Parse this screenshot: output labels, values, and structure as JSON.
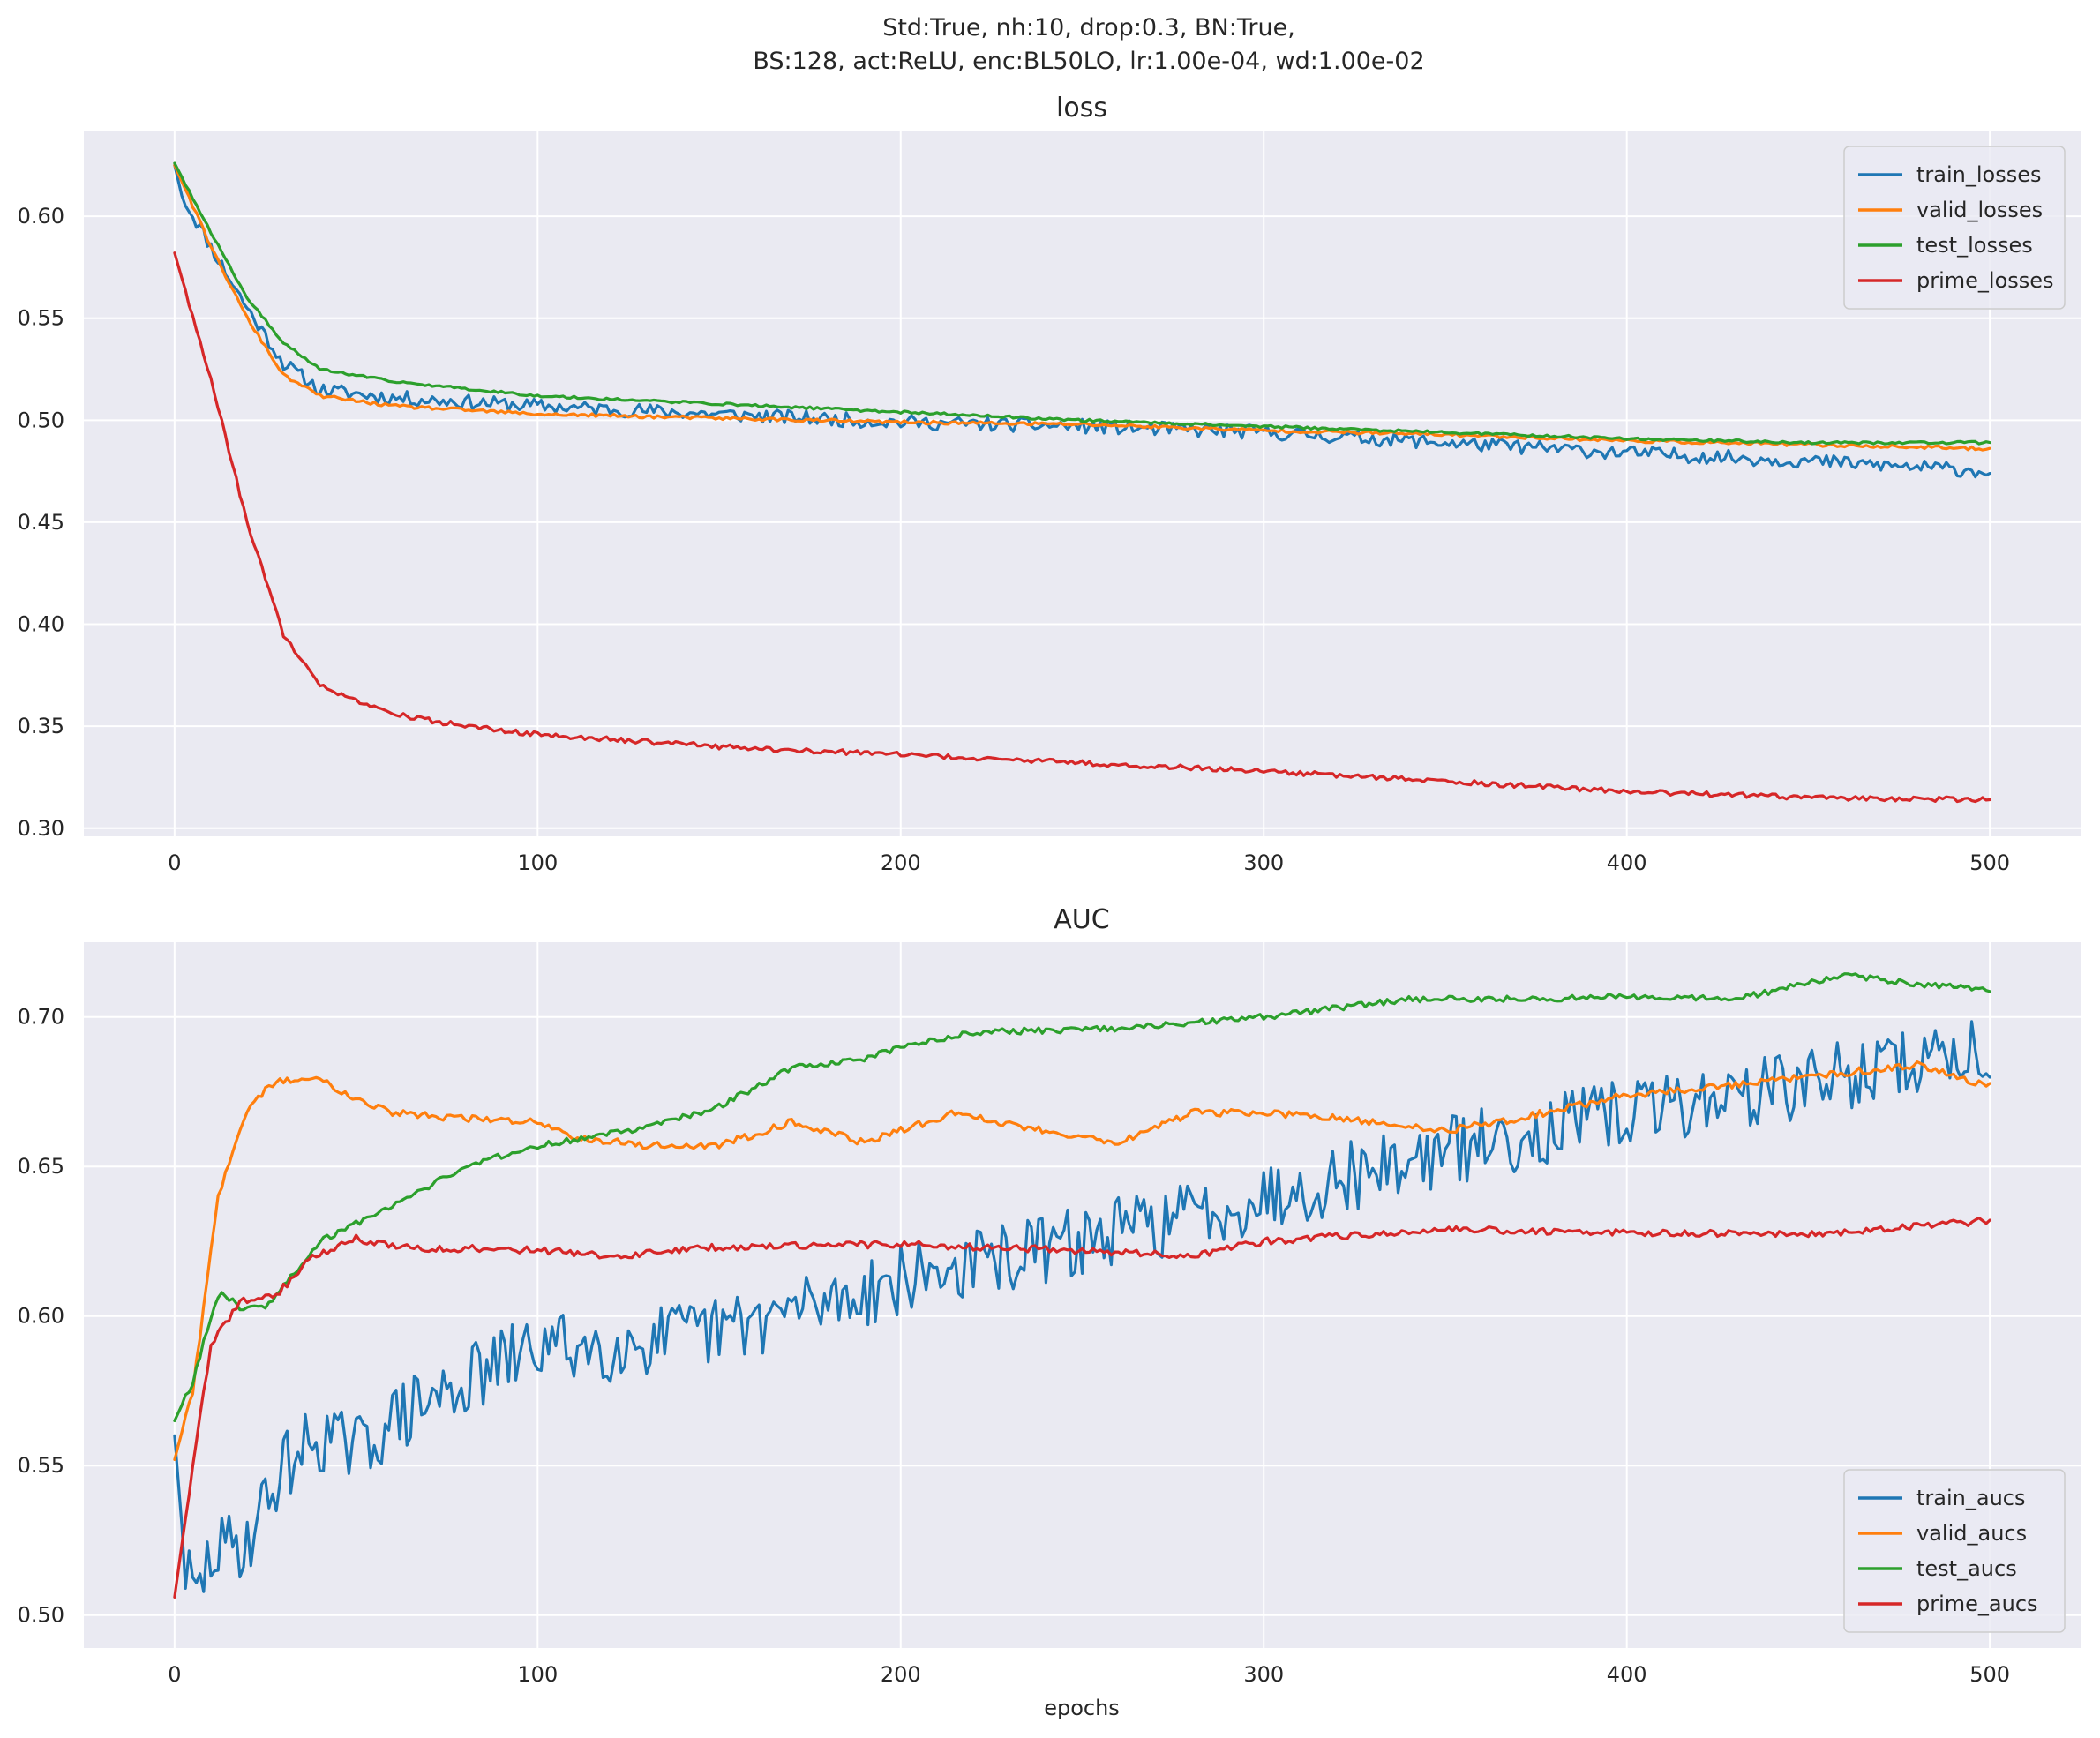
{
  "figure": {
    "suptitle_line1": "Std:True, nh:10, drop:0.3, BN:True,",
    "suptitle_line2": "BS:128, act:ReLU, enc:BL50LO, lr:1.00e-04, wd:1.00e-02"
  },
  "colors": {
    "blue": "#1f77b4",
    "orange": "#ff7f0e",
    "green": "#2ca02c",
    "red": "#d62728"
  },
  "chart_data": [
    {
      "type": "line",
      "title": "loss",
      "xlabel": "",
      "ylabel": "",
      "xlim": [
        -25,
        525
      ],
      "ylim": [
        0.296,
        0.642
      ],
      "xticks": [
        0,
        100,
        200,
        300,
        400,
        500
      ],
      "yticks": [
        0.3,
        0.35,
        0.4,
        0.45,
        0.5,
        0.55,
        0.6
      ],
      "ytick_labels": [
        "0.30",
        "0.35",
        "0.40",
        "0.45",
        "0.50",
        "0.55",
        "0.60"
      ],
      "grid": true,
      "legend_position": "top-right",
      "noise_seed": 11,
      "series": [
        {
          "name": "train_losses",
          "color": "#1f77b4",
          "noise": 0.0035,
          "keypoints": [
            [
              0,
              0.625
            ],
            [
              2,
              0.61
            ],
            [
              10,
              0.585
            ],
            [
              20,
              0.555
            ],
            [
              30,
              0.528
            ],
            [
              40,
              0.515
            ],
            [
              60,
              0.511
            ],
            [
              100,
              0.507
            ],
            [
              150,
              0.503
            ],
            [
              200,
              0.499
            ],
            [
              250,
              0.497
            ],
            [
              300,
              0.494
            ],
            [
              350,
              0.489
            ],
            [
              400,
              0.484
            ],
            [
              450,
              0.48
            ],
            [
              500,
              0.475
            ]
          ]
        },
        {
          "name": "valid_losses",
          "color": "#ff7f0e",
          "noise": 0.0008,
          "keypoints": [
            [
              0,
              0.625
            ],
            [
              10,
              0.585
            ],
            [
              20,
              0.55
            ],
            [
              30,
              0.522
            ],
            [
              40,
              0.512
            ],
            [
              60,
              0.507
            ],
            [
              100,
              0.503
            ],
            [
              150,
              0.501
            ],
            [
              200,
              0.499
            ],
            [
              250,
              0.498
            ],
            [
              300,
              0.495
            ],
            [
              350,
              0.493
            ],
            [
              400,
              0.49
            ],
            [
              450,
              0.488
            ],
            [
              500,
              0.486
            ]
          ]
        },
        {
          "name": "test_losses",
          "color": "#2ca02c",
          "noise": 0.0006,
          "keypoints": [
            [
              0,
              0.626
            ],
            [
              10,
              0.592
            ],
            [
              20,
              0.56
            ],
            [
              30,
              0.538
            ],
            [
              40,
              0.525
            ],
            [
              60,
              0.519
            ],
            [
              100,
              0.512
            ],
            [
              150,
              0.508
            ],
            [
              200,
              0.504
            ],
            [
              250,
              0.5
            ],
            [
              300,
              0.497
            ],
            [
              350,
              0.494
            ],
            [
              400,
              0.491
            ],
            [
              450,
              0.489
            ],
            [
              500,
              0.489
            ]
          ]
        },
        {
          "name": "prime_losses",
          "color": "#d62728",
          "noise": 0.0012,
          "keypoints": [
            [
              0,
              0.582
            ],
            [
              10,
              0.52
            ],
            [
              20,
              0.45
            ],
            [
              30,
              0.395
            ],
            [
              40,
              0.37
            ],
            [
              50,
              0.362
            ],
            [
              60,
              0.356
            ],
            [
              80,
              0.35
            ],
            [
              100,
              0.346
            ],
            [
              150,
              0.34
            ],
            [
              200,
              0.336
            ],
            [
              250,
              0.332
            ],
            [
              300,
              0.328
            ],
            [
              350,
              0.323
            ],
            [
              400,
              0.318
            ],
            [
              450,
              0.315
            ],
            [
              500,
              0.314
            ]
          ]
        }
      ]
    },
    {
      "type": "line",
      "title": "AUC",
      "xlabel": "epochs",
      "ylabel": "",
      "xlim": [
        -25,
        525
      ],
      "ylim": [
        0.489,
        0.725
      ],
      "xticks": [
        0,
        100,
        200,
        300,
        400,
        500
      ],
      "yticks": [
        0.5,
        0.55,
        0.6,
        0.65,
        0.7
      ],
      "ytick_labels": [
        "0.50",
        "0.55",
        "0.60",
        "0.65",
        "0.70"
      ],
      "grid": true,
      "legend_position": "bottom-right",
      "noise_seed": 29,
      "series": [
        {
          "name": "train_aucs",
          "color": "#1f77b4",
          "noise": 0.012,
          "keypoints": [
            [
              0,
              0.56
            ],
            [
              3,
              0.515
            ],
            [
              6,
              0.505
            ],
            [
              10,
              0.52
            ],
            [
              20,
              0.525
            ],
            [
              30,
              0.55
            ],
            [
              40,
              0.56
            ],
            [
              50,
              0.555
            ],
            [
              60,
              0.565
            ],
            [
              80,
              0.578
            ],
            [
              100,
              0.59
            ],
            [
              120,
              0.59
            ],
            [
              150,
              0.595
            ],
            [
              200,
              0.612
            ],
            [
              250,
              0.625
            ],
            [
              300,
              0.64
            ],
            [
              350,
              0.655
            ],
            [
              400,
              0.668
            ],
            [
              450,
              0.678
            ],
            [
              500,
              0.69
            ]
          ]
        },
        {
          "name": "valid_aucs",
          "color": "#ff7f0e",
          "noise": 0.0012,
          "keypoints": [
            [
              0,
              0.552
            ],
            [
              5,
              0.575
            ],
            [
              12,
              0.64
            ],
            [
              20,
              0.668
            ],
            [
              25,
              0.676
            ],
            [
              30,
              0.679
            ],
            [
              40,
              0.679
            ],
            [
              50,
              0.673
            ],
            [
              60,
              0.668
            ],
            [
              80,
              0.666
            ],
            [
              100,
              0.665
            ],
            [
              110,
              0.66
            ],
            [
              130,
              0.657
            ],
            [
              150,
              0.657
            ],
            [
              170,
              0.665
            ],
            [
              190,
              0.658
            ],
            [
              200,
              0.662
            ],
            [
              215,
              0.668
            ],
            [
              230,
              0.664
            ],
            [
              260,
              0.658
            ],
            [
              280,
              0.668
            ],
            [
              300,
              0.668
            ],
            [
              320,
              0.666
            ],
            [
              350,
              0.662
            ],
            [
              370,
              0.666
            ],
            [
              400,
              0.674
            ],
            [
              420,
              0.676
            ],
            [
              450,
              0.68
            ],
            [
              480,
              0.684
            ],
            [
              500,
              0.677
            ]
          ]
        },
        {
          "name": "test_aucs",
          "color": "#2ca02c",
          "noise": 0.001,
          "keypoints": [
            [
              0,
              0.565
            ],
            [
              5,
              0.578
            ],
            [
              10,
              0.6
            ],
            [
              13,
              0.608
            ],
            [
              18,
              0.603
            ],
            [
              25,
              0.603
            ],
            [
              40,
              0.625
            ],
            [
              60,
              0.637
            ],
            [
              80,
              0.65
            ],
            [
              100,
              0.657
            ],
            [
              110,
              0.659
            ],
            [
              130,
              0.663
            ],
            [
              150,
              0.67
            ],
            [
              170,
              0.683
            ],
            [
              190,
              0.686
            ],
            [
              200,
              0.69
            ],
            [
              220,
              0.695
            ],
            [
              260,
              0.696
            ],
            [
              300,
              0.7
            ],
            [
              340,
              0.706
            ],
            [
              380,
              0.706
            ],
            [
              400,
              0.707
            ],
            [
              430,
              0.706
            ],
            [
              460,
              0.714
            ],
            [
              480,
              0.711
            ],
            [
              500,
              0.709
            ]
          ]
        },
        {
          "name": "prime_aucs",
          "color": "#d62728",
          "noise": 0.0012,
          "keypoints": [
            [
              0,
              0.506
            ],
            [
              5,
              0.55
            ],
            [
              10,
              0.59
            ],
            [
              18,
              0.605
            ],
            [
              28,
              0.607
            ],
            [
              38,
              0.62
            ],
            [
              50,
              0.626
            ],
            [
              60,
              0.623
            ],
            [
              100,
              0.622
            ],
            [
              120,
              0.62
            ],
            [
              150,
              0.623
            ],
            [
              200,
              0.624
            ],
            [
              250,
              0.622
            ],
            [
              280,
              0.62
            ],
            [
              300,
              0.625
            ],
            [
              350,
              0.629
            ],
            [
              400,
              0.628
            ],
            [
              450,
              0.627
            ],
            [
              500,
              0.632
            ]
          ]
        }
      ]
    }
  ]
}
